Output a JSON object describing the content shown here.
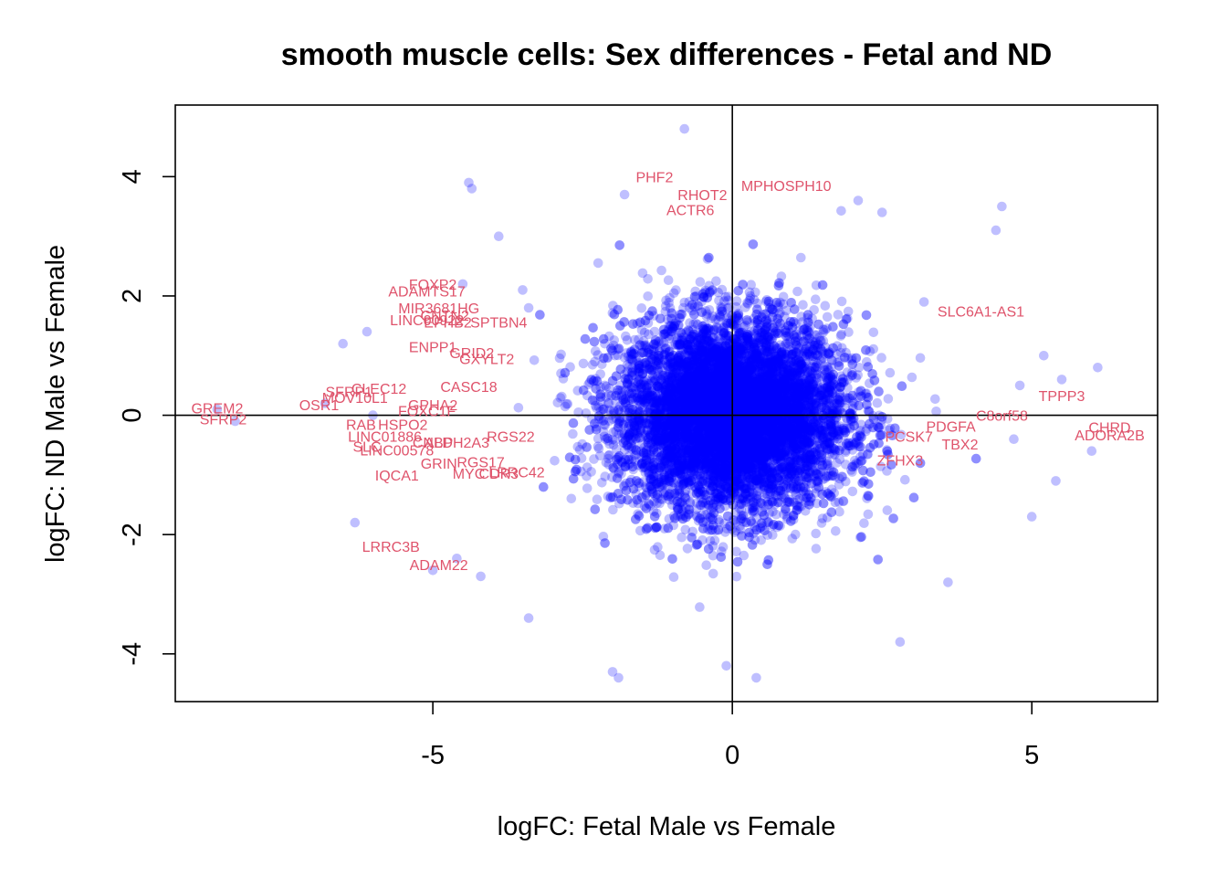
{
  "chart_data": {
    "type": "scatter",
    "title": "smooth muscle cells: Sex differences - Fetal and ND",
    "xlabel": "logFC: Fetal Male vs Female",
    "ylabel": "logFC: ND Male vs Female",
    "xlim": [
      -9.3,
      7.1
    ],
    "ylim": [
      -4.8,
      5.2
    ],
    "xticks": [
      -5,
      0,
      5
    ],
    "yticks": [
      -4,
      -2,
      0,
      2,
      4
    ],
    "reference_lines": {
      "x": 0,
      "y": 0
    },
    "grid": false,
    "legend": "none",
    "point_color": "#0000ff",
    "point_opacity": 0.25,
    "label_color": "#df536b",
    "background_cloud": {
      "count": 9000,
      "x_center": 0,
      "y_center": 0,
      "x_sd": 0.95,
      "y_sd": 0.8
    },
    "points": [
      {
        "x": -0.8,
        "y": 4.8
      },
      {
        "x": -4.4,
        "y": 3.9
      },
      {
        "x": -4.35,
        "y": 3.8
      },
      {
        "x": -1.8,
        "y": 3.7
      },
      {
        "x": 2.1,
        "y": 3.6
      },
      {
        "x": 4.5,
        "y": 3.5
      },
      {
        "x": 2.5,
        "y": 3.4
      },
      {
        "x": 4.4,
        "y": 3.1
      },
      {
        "x": -3.9,
        "y": 3.0
      },
      {
        "x": -6.1,
        "y": 1.4
      },
      {
        "x": -6.5,
        "y": 1.2
      },
      {
        "x": -4.5,
        "y": 2.2
      },
      {
        "x": -3.4,
        "y": 1.8
      },
      {
        "x": -3.5,
        "y": 2.1
      },
      {
        "x": 5.2,
        "y": 1.0
      },
      {
        "x": 5.5,
        "y": 0.6
      },
      {
        "x": 6.1,
        "y": 0.8
      },
      {
        "x": 4.8,
        "y": 0.5
      },
      {
        "x": -6.3,
        "y": -1.8
      },
      {
        "x": -5.0,
        "y": -2.6
      },
      {
        "x": -4.2,
        "y": -2.7
      },
      {
        "x": -4.6,
        "y": -2.4
      },
      {
        "x": -2.0,
        "y": -4.3
      },
      {
        "x": -1.9,
        "y": -4.4
      },
      {
        "x": 0.4,
        "y": -4.4
      },
      {
        "x": -0.1,
        "y": -4.2
      },
      {
        "x": 5.0,
        "y": -1.7
      },
      {
        "x": 5.4,
        "y": -1.1
      },
      {
        "x": 6.0,
        "y": -0.6
      },
      {
        "x": -3.4,
        "y": -3.4
      },
      {
        "x": 2.8,
        "y": -3.8
      },
      {
        "x": 3.6,
        "y": -2.8
      },
      {
        "x": -8.6,
        "y": 0.1
      },
      {
        "x": -8.3,
        "y": -0.1
      },
      {
        "x": -6.8,
        "y": 0.2
      },
      {
        "x": -6.0,
        "y": 0.0
      },
      {
        "x": 3.2,
        "y": 1.9
      },
      {
        "x": 4.7,
        "y": -0.4
      }
    ],
    "labels": [
      {
        "text": "PHF2",
        "x": -1.3,
        "y": 4.0
      },
      {
        "text": "MPHOSPH10",
        "x": 0.9,
        "y": 3.85
      },
      {
        "text": "RHOT2",
        "x": -0.5,
        "y": 3.7
      },
      {
        "text": "ACTR6",
        "x": -0.7,
        "y": 3.45
      },
      {
        "text": "FOXP2",
        "x": -5.0,
        "y": 2.2
      },
      {
        "text": "ADAMTS17",
        "x": -5.1,
        "y": 2.08
      },
      {
        "text": "MIR3681HG",
        "x": -4.9,
        "y": 1.8
      },
      {
        "text": "LINC00922",
        "x": -5.1,
        "y": 1.6
      },
      {
        "text": "CNTN2",
        "x": -4.8,
        "y": 1.68
      },
      {
        "text": "EPHB2",
        "x": -4.75,
        "y": 1.56
      },
      {
        "text": "SPTBN4",
        "x": -3.9,
        "y": 1.56
      },
      {
        "text": "SLC6A1-AS1",
        "x": 4.15,
        "y": 1.75
      },
      {
        "text": "ENPP1",
        "x": -5.0,
        "y": 1.15
      },
      {
        "text": "GRID2",
        "x": -4.35,
        "y": 1.05
      },
      {
        "text": "GXYLT2",
        "x": -4.1,
        "y": 0.95
      },
      {
        "text": "CASC18",
        "x": -4.4,
        "y": 0.48
      },
      {
        "text": "SFRP1",
        "x": -6.4,
        "y": 0.4
      },
      {
        "text": "CLEC12",
        "x": -5.9,
        "y": 0.45
      },
      {
        "text": "MOV10L1",
        "x": -6.3,
        "y": 0.3
      },
      {
        "text": "TPPP3",
        "x": 5.5,
        "y": 0.33
      },
      {
        "text": "OSR1",
        "x": -6.9,
        "y": 0.18
      },
      {
        "text": "GPHA2",
        "x": -5.0,
        "y": 0.18
      },
      {
        "text": "FOXC1F",
        "x": -5.1,
        "y": 0.08
      },
      {
        "text": "GREM2",
        "x": -8.6,
        "y": 0.12
      },
      {
        "text": "SFRP2",
        "x": -8.5,
        "y": -0.06
      },
      {
        "text": "C8orf58",
        "x": 4.5,
        "y": 0.0
      },
      {
        "text": "RAB",
        "x": -6.2,
        "y": -0.15
      },
      {
        "text": "HSPO2",
        "x": -5.5,
        "y": -0.15
      },
      {
        "text": "PDGFA",
        "x": 3.65,
        "y": -0.18
      },
      {
        "text": "CHRD",
        "x": 6.3,
        "y": -0.2
      },
      {
        "text": "ADORA2B",
        "x": 6.3,
        "y": -0.33
      },
      {
        "text": "PCSK7",
        "x": 2.95,
        "y": -0.35
      },
      {
        "text": "LINC01886",
        "x": -5.8,
        "y": -0.35
      },
      {
        "text": "RGS22",
        "x": -3.7,
        "y": -0.35
      },
      {
        "text": "TBX2",
        "x": 3.8,
        "y": -0.48
      },
      {
        "text": "SLC",
        "x": -6.1,
        "y": -0.52
      },
      {
        "text": "CNBP",
        "x": -5.0,
        "y": -0.45
      },
      {
        "text": "ALDH2A3",
        "x": -4.6,
        "y": -0.45
      },
      {
        "text": "LINC00578",
        "x": -5.6,
        "y": -0.58
      },
      {
        "text": "ZFHX3",
        "x": 2.8,
        "y": -0.75
      },
      {
        "text": "GRIN",
        "x": -4.9,
        "y": -0.8
      },
      {
        "text": "RGS17",
        "x": -4.2,
        "y": -0.78
      },
      {
        "text": "LRRC42",
        "x": -3.6,
        "y": -0.95
      },
      {
        "text": "MYC",
        "x": -4.4,
        "y": -0.97
      },
      {
        "text": "CDR3",
        "x": -3.9,
        "y": -0.97
      },
      {
        "text": "IQCA1",
        "x": -5.6,
        "y": -1.0
      },
      {
        "text": "LRRC3B",
        "x": -5.7,
        "y": -2.2
      },
      {
        "text": "ADAM22",
        "x": -4.9,
        "y": -2.5
      }
    ]
  }
}
